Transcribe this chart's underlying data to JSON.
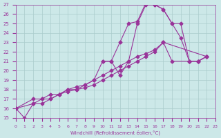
{
  "xlabel": "Windchill (Refroidissement éolien,°C)",
  "background_color": "#cce8e8",
  "grid_color": "#aacccc",
  "line_color": "#993399",
  "xlim": [
    0,
    23
  ],
  "ylim": [
    15,
    27
  ],
  "yticks": [
    15,
    16,
    17,
    18,
    19,
    20,
    21,
    22,
    23,
    24,
    25,
    26,
    27
  ],
  "xticks": [
    0,
    1,
    2,
    3,
    4,
    5,
    6,
    7,
    8,
    9,
    10,
    11,
    12,
    13,
    14,
    15,
    16,
    17,
    18,
    19,
    20,
    21,
    22,
    23
  ],
  "s1x": [
    0,
    1,
    2,
    3,
    4,
    5,
    6,
    7,
    8,
    9,
    10,
    11,
    12,
    13,
    14,
    15,
    16,
    17,
    18,
    19,
    20,
    21,
    22
  ],
  "s1y": [
    16,
    15,
    16.5,
    16.5,
    17,
    17.5,
    18,
    18,
    18.5,
    19,
    21,
    21,
    19.5,
    21,
    25,
    27,
    27,
    26.5,
    25,
    25,
    21,
    21,
    21.5
  ],
  "s2x": [
    10,
    11,
    12,
    13,
    14,
    15,
    16,
    17,
    18,
    19,
    20,
    21,
    22
  ],
  "s2y": [
    21,
    21,
    23,
    25,
    25.2,
    27.2,
    27,
    26.5,
    25,
    23.5,
    21,
    21,
    21.5
  ],
  "s3x": [
    0,
    2,
    3,
    4,
    5,
    6,
    7,
    8,
    9,
    10,
    11,
    12,
    13,
    14,
    15,
    16,
    17,
    18,
    20,
    21,
    22
  ],
  "s3y": [
    16,
    16.5,
    17,
    17,
    17.5,
    17.8,
    18,
    18.2,
    18.5,
    19,
    19.5,
    20,
    20.5,
    21,
    21.5,
    22,
    23,
    21,
    21,
    21,
    21.5
  ],
  "s4x": [
    0,
    2,
    3,
    4,
    5,
    6,
    7,
    8,
    9,
    10,
    11,
    12,
    13,
    14,
    15,
    16,
    17,
    22
  ],
  "s4y": [
    16,
    17,
    17,
    17.5,
    17.5,
    18,
    18.3,
    18.5,
    19,
    19.5,
    20,
    20.5,
    21,
    21.5,
    21.8,
    22.2,
    23,
    21.5
  ]
}
